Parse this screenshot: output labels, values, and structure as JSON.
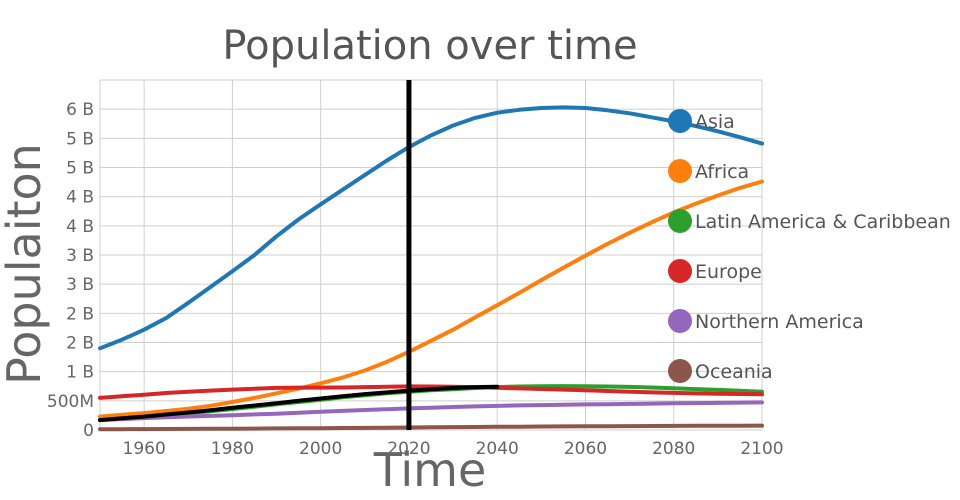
{
  "chart_data": {
    "type": "line",
    "title": "Population over time",
    "xlabel": "Time",
    "ylabel": "Populaiton",
    "xlim": [
      1950,
      2100
    ],
    "ylim": [
      0,
      6000000000
    ],
    "x_ticks": [
      1960,
      1980,
      2000,
      2020,
      2040,
      2060,
      2080,
      2100
    ],
    "y_ticks": [
      {
        "value": 0,
        "label": "0"
      },
      {
        "value": 500000000,
        "label": "500M"
      },
      {
        "value": 1000000000,
        "label": "1 B"
      },
      {
        "value": 1500000000,
        "label": "2 B"
      },
      {
        "value": 2000000000,
        "label": "2 B"
      },
      {
        "value": 2500000000,
        "label": "3 B"
      },
      {
        "value": 3000000000,
        "label": "3 B"
      },
      {
        "value": 3500000000,
        "label": "4 B"
      },
      {
        "value": 4000000000,
        "label": "4 B"
      },
      {
        "value": 4500000000,
        "label": "5 B"
      },
      {
        "value": 5000000000,
        "label": "5 B"
      },
      {
        "value": 5500000000,
        "label": "6 B"
      }
    ],
    "grid": true,
    "legend_position": "right",
    "vertical_marker": {
      "x": 2020,
      "color": "#000000"
    },
    "x": [
      1950,
      1955,
      1960,
      1965,
      1970,
      1975,
      1980,
      1985,
      1990,
      1995,
      2000,
      2005,
      2010,
      2015,
      2020,
      2025,
      2030,
      2035,
      2040,
      2045,
      2050,
      2055,
      2060,
      2065,
      2070,
      2075,
      2080,
      2085,
      2090,
      2095,
      2100
    ],
    "series": [
      {
        "name": "Asia",
        "color": "#1f77b4",
        "values": [
          1400000000,
          1550000000,
          1720000000,
          1920000000,
          2180000000,
          2450000000,
          2720000000,
          3000000000,
          3320000000,
          3610000000,
          3870000000,
          4120000000,
          4370000000,
          4620000000,
          4850000000,
          5050000000,
          5220000000,
          5350000000,
          5440000000,
          5490000000,
          5520000000,
          5530000000,
          5520000000,
          5480000000,
          5430000000,
          5360000000,
          5290000000,
          5210000000,
          5120000000,
          5020000000,
          4910000000
        ]
      },
      {
        "name": "Africa",
        "color": "#ff7f0e",
        "values": [
          230000000,
          260000000,
          290000000,
          325000000,
          365000000,
          415000000,
          480000000,
          550000000,
          630000000,
          710000000,
          800000000,
          900000000,
          1020000000,
          1170000000,
          1340000000,
          1530000000,
          1720000000,
          1930000000,
          2140000000,
          2350000000,
          2570000000,
          2780000000,
          2990000000,
          3190000000,
          3380000000,
          3560000000,
          3730000000,
          3880000000,
          4020000000,
          4150000000,
          4260000000
        ]
      },
      {
        "name": "Latin America & Caribbean",
        "color": "#2ca02c",
        "values": [
          170000000,
          195000000,
          220000000,
          250000000,
          285000000,
          320000000,
          360000000,
          400000000,
          440000000,
          480000000,
          520000000,
          560000000,
          595000000,
          630000000,
          655000000,
          680000000,
          700000000,
          720000000,
          735000000,
          745000000,
          750000000,
          752000000,
          750000000,
          745000000,
          738000000,
          728000000,
          716000000,
          702000000,
          688000000,
          672000000,
          655000000
        ]
      },
      {
        "name": "Europe",
        "color": "#d62728",
        "values": [
          550000000,
          580000000,
          605000000,
          635000000,
          657000000,
          676000000,
          693000000,
          706000000,
          721000000,
          727000000,
          726000000,
          729000000,
          736000000,
          741000000,
          747000000,
          745000000,
          740000000,
          733000000,
          724000000,
          714000000,
          703000000,
          692000000,
          680000000,
          668000000,
          656000000,
          645000000,
          636000000,
          628000000,
          622000000,
          617000000,
          612000000
        ]
      },
      {
        "name": "Northern America",
        "color": "#9467bd",
        "values": [
          172000000,
          187000000,
          204000000,
          219000000,
          231000000,
          242000000,
          254000000,
          267000000,
          280000000,
          296000000,
          312000000,
          327000000,
          343000000,
          357000000,
          370000000,
          383000000,
          395000000,
          405000000,
          414000000,
          421000000,
          427000000,
          433000000,
          438000000,
          443000000,
          448000000,
          453000000,
          457000000,
          461000000,
          465000000,
          469000000,
          474000000
        ]
      },
      {
        "name": "Oceania",
        "color": "#8c564b",
        "values": [
          12700000,
          14200000,
          15800000,
          17600000,
          19700000,
          21500000,
          22900000,
          24800000,
          27000000,
          29200000,
          31400000,
          33500000,
          36600000,
          39700000,
          43000000,
          46000000,
          49000000,
          51800000,
          54500000,
          57000000,
          59400000,
          61600000,
          63700000,
          65600000,
          67400000,
          69000000,
          70500000,
          71900000,
          73200000,
          74400000,
          75300000
        ]
      },
      {
        "name": "",
        "color": "#000000",
        "values": [
          170000000,
          200000000,
          230000000,
          265000000,
          300000000,
          340000000,
          380000000,
          420000000,
          460000000,
          500000000,
          540000000,
          580000000,
          615000000,
          645000000,
          675000000,
          700000000,
          720000000,
          735000000,
          742000000,
          null,
          null,
          null,
          null,
          null,
          null,
          null,
          null,
          null,
          null,
          null,
          null
        ]
      }
    ]
  }
}
